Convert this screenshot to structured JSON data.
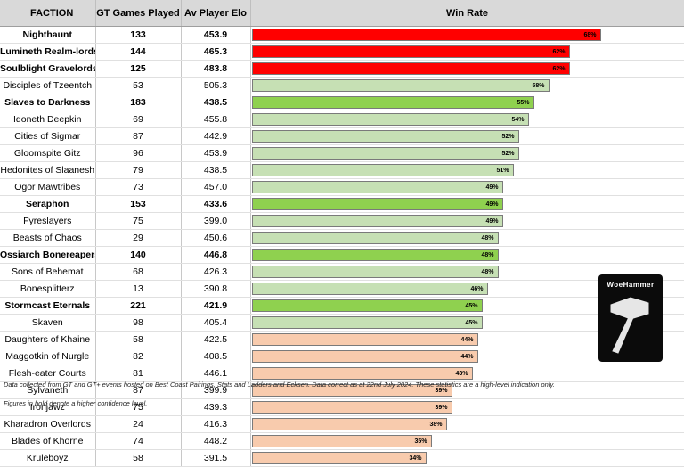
{
  "headers": {
    "faction": "FACTION",
    "games": "GT Games Played",
    "elo": "Av Player Elo",
    "win_rate": "Win Rate"
  },
  "colors": {
    "red": "#ff0000",
    "green": "#8fd14f",
    "light_green": "#c6e0b4",
    "peach": "#f8cbad"
  },
  "chart_data": {
    "type": "bar",
    "orientation": "horizontal",
    "title": "Win Rate",
    "xlim": [
      0,
      70
    ],
    "rows": [
      {
        "faction": "Nighthaunt",
        "games": "133",
        "elo": "453.9",
        "win_rate": 68,
        "label": "68%",
        "bold": true,
        "color": "red"
      },
      {
        "faction": "Lumineth Realm-lords",
        "games": "144",
        "elo": "465.3",
        "win_rate": 62,
        "label": "62%",
        "bold": true,
        "color": "red"
      },
      {
        "faction": "Soulblight Gravelords",
        "games": "125",
        "elo": "483.8",
        "win_rate": 62,
        "label": "62%",
        "bold": true,
        "color": "red"
      },
      {
        "faction": "Disciples of Tzeentch",
        "games": "53",
        "elo": "505.3",
        "win_rate": 58,
        "label": "58%",
        "bold": false,
        "color": "light_green"
      },
      {
        "faction": "Slaves to Darkness",
        "games": "183",
        "elo": "438.5",
        "win_rate": 55,
        "label": "55%",
        "bold": true,
        "color": "green"
      },
      {
        "faction": "Idoneth Deepkin",
        "games": "69",
        "elo": "455.8",
        "win_rate": 54,
        "label": "54%",
        "bold": false,
        "color": "light_green"
      },
      {
        "faction": "Cities of Sigmar",
        "games": "87",
        "elo": "442.9",
        "win_rate": 52,
        "label": "52%",
        "bold": false,
        "color": "light_green"
      },
      {
        "faction": "Gloomspite Gitz",
        "games": "96",
        "elo": "453.9",
        "win_rate": 52,
        "label": "52%",
        "bold": false,
        "color": "light_green"
      },
      {
        "faction": "Hedonites of Slaanesh",
        "games": "79",
        "elo": "438.5",
        "win_rate": 51,
        "label": "51%",
        "bold": false,
        "color": "light_green"
      },
      {
        "faction": "Ogor Mawtribes",
        "games": "73",
        "elo": "457.0",
        "win_rate": 49,
        "label": "49%",
        "bold": false,
        "color": "light_green"
      },
      {
        "faction": "Seraphon",
        "games": "153",
        "elo": "433.6",
        "win_rate": 49,
        "label": "49%",
        "bold": true,
        "color": "green"
      },
      {
        "faction": "Fyreslayers",
        "games": "75",
        "elo": "399.0",
        "win_rate": 49,
        "label": "49%",
        "bold": false,
        "color": "light_green"
      },
      {
        "faction": "Beasts of Chaos",
        "games": "29",
        "elo": "450.6",
        "win_rate": 48,
        "label": "48%",
        "bold": false,
        "color": "light_green"
      },
      {
        "faction": "Ossiarch Bonereapers",
        "games": "140",
        "elo": "446.8",
        "win_rate": 48,
        "label": "48%",
        "bold": true,
        "color": "green"
      },
      {
        "faction": "Sons of Behemat",
        "games": "68",
        "elo": "426.3",
        "win_rate": 48,
        "label": "48%",
        "bold": false,
        "color": "light_green"
      },
      {
        "faction": "Bonesplitterz",
        "games": "13",
        "elo": "390.8",
        "win_rate": 46,
        "label": "46%",
        "bold": false,
        "color": "light_green"
      },
      {
        "faction": "Stormcast Eternals",
        "games": "221",
        "elo": "421.9",
        "win_rate": 45,
        "label": "45%",
        "bold": true,
        "color": "green"
      },
      {
        "faction": "Skaven",
        "games": "98",
        "elo": "405.4",
        "win_rate": 45,
        "label": "45%",
        "bold": false,
        "color": "light_green"
      },
      {
        "faction": "Daughters of Khaine",
        "games": "58",
        "elo": "422.5",
        "win_rate": 44,
        "label": "44%",
        "bold": false,
        "color": "peach"
      },
      {
        "faction": "Maggotkin of Nurgle",
        "games": "82",
        "elo": "408.5",
        "win_rate": 44,
        "label": "44%",
        "bold": false,
        "color": "peach"
      },
      {
        "faction": "Flesh-eater Courts",
        "games": "81",
        "elo": "446.1",
        "win_rate": 43,
        "label": "43%",
        "bold": false,
        "color": "peach"
      },
      {
        "faction": "Sylvaneth",
        "games": "87",
        "elo": "399.9",
        "win_rate": 39,
        "label": "39%",
        "bold": false,
        "color": "peach"
      },
      {
        "faction": "Ironjawz",
        "games": "75",
        "elo": "439.3",
        "win_rate": 39,
        "label": "39%",
        "bold": false,
        "color": "peach"
      },
      {
        "faction": "Kharadron Overlords",
        "games": "24",
        "elo": "416.3",
        "win_rate": 38,
        "label": "38%",
        "bold": false,
        "color": "peach"
      },
      {
        "faction": "Blades of Khorne",
        "games": "74",
        "elo": "448.2",
        "win_rate": 35,
        "label": "35%",
        "bold": false,
        "color": "peach"
      },
      {
        "faction": "Kruleboyz",
        "games": "58",
        "elo": "391.5",
        "win_rate": 34,
        "label": "34%",
        "bold": false,
        "color": "peach"
      }
    ]
  },
  "footnotes": {
    "source": "Data collected from GT and GT+ events hosted on Best Coast Pairings, Stats and Ladders and Ecksen. Data correct as at 22nd July 2024. These statistics are a high-level indication only.",
    "bold_note": "Figures in bold denote a higher confidence level."
  },
  "logo": {
    "text": "WoeHammer",
    "icon": "hammer-icon"
  }
}
